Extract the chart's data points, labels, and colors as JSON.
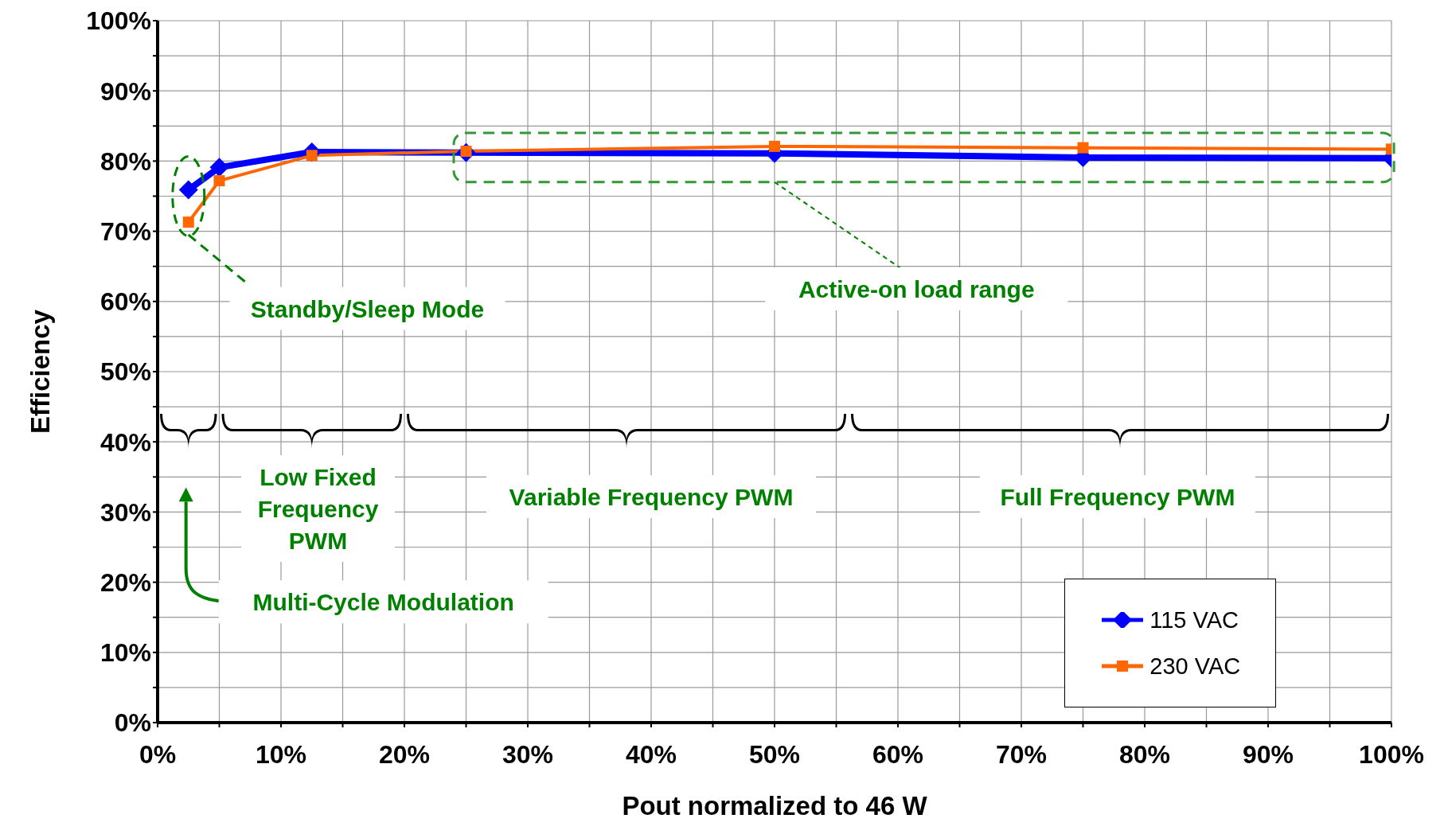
{
  "chart_data": {
    "type": "line",
    "xlabel": "Pout normalized to 46 W",
    "ylabel": "Efficiency",
    "x": [
      2.5,
      5,
      12.5,
      25,
      50,
      75,
      100
    ],
    "series": [
      {
        "name": "115 VAC",
        "color": "#0000ff",
        "marker": "diamond",
        "values": [
          75.9,
          79.1,
          81.3,
          81.2,
          81.1,
          80.5,
          80.4
        ]
      },
      {
        "name": "230 VAC",
        "color": "#ff6600",
        "marker": "square",
        "values": [
          71.3,
          77.2,
          80.8,
          81.4,
          82.1,
          81.9,
          81.7
        ]
      }
    ],
    "xlim": [
      0,
      100
    ],
    "ylim": [
      0,
      100
    ],
    "xticks": [
      {
        "value": 0,
        "label": "0%"
      },
      {
        "value": 5,
        "label": null
      },
      {
        "value": 10,
        "label": "10%"
      },
      {
        "value": 15,
        "label": null
      },
      {
        "value": 20,
        "label": "20%"
      },
      {
        "value": 25,
        "label": null
      },
      {
        "value": 30,
        "label": "30%"
      },
      {
        "value": 35,
        "label": null
      },
      {
        "value": 40,
        "label": "40%"
      },
      {
        "value": 45,
        "label": null
      },
      {
        "value": 50,
        "label": "50%"
      },
      {
        "value": 55,
        "label": null
      },
      {
        "value": 60,
        "label": "60%"
      },
      {
        "value": 65,
        "label": null
      },
      {
        "value": 70,
        "label": "70%"
      },
      {
        "value": 75,
        "label": null
      },
      {
        "value": 80,
        "label": "80%"
      },
      {
        "value": 85,
        "label": null
      },
      {
        "value": 90,
        "label": "90%"
      },
      {
        "value": 95,
        "label": null
      },
      {
        "value": 100,
        "label": "100%"
      }
    ],
    "yticks": [
      {
        "value": 0,
        "label": "0%"
      },
      {
        "value": 5,
        "label": null
      },
      {
        "value": 10,
        "label": "10%"
      },
      {
        "value": 15,
        "label": null
      },
      {
        "value": 20,
        "label": "20%"
      },
      {
        "value": 25,
        "label": null
      },
      {
        "value": 30,
        "label": "30%"
      },
      {
        "value": 35,
        "label": null
      },
      {
        "value": 40,
        "label": "40%"
      },
      {
        "value": 45,
        "label": null
      },
      {
        "value": 50,
        "label": "50%"
      },
      {
        "value": 55,
        "label": null
      },
      {
        "value": 60,
        "label": "60%"
      },
      {
        "value": 65,
        "label": null
      },
      {
        "value": 70,
        "label": "70%"
      },
      {
        "value": 75,
        "label": null
      },
      {
        "value": 80,
        "label": "80%"
      },
      {
        "value": 85,
        "label": null
      },
      {
        "value": 90,
        "label": "90%"
      },
      {
        "value": 95,
        "label": null
      },
      {
        "value": 100,
        "label": "100%"
      }
    ],
    "grid": true,
    "legend": "bottom right",
    "annotations": [
      "Standby/Sleep Mode",
      "Active-on load range",
      "Low Fixed Frequency PWM",
      "Variable Frequency PWM",
      "Full Frequency PWM",
      "Multi-Cycle Modulation"
    ]
  }
}
